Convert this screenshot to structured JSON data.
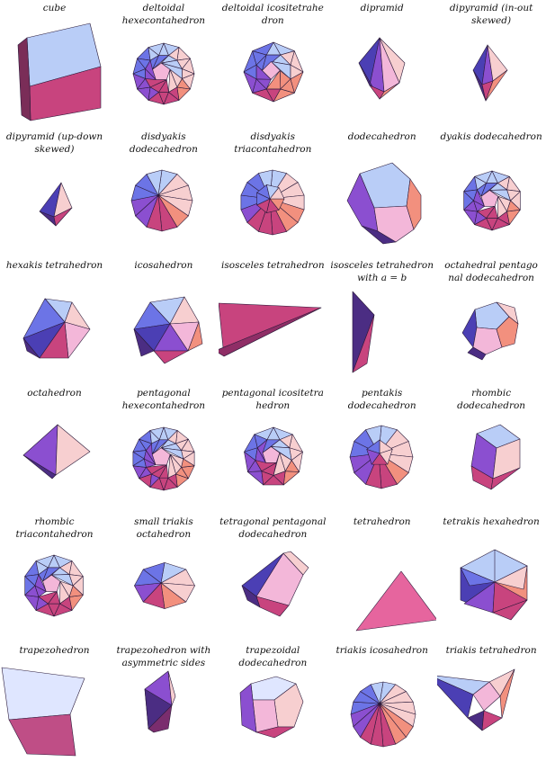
{
  "palette": {
    "light": "#dfe6ff",
    "sky": "#b9cdf7",
    "blue": "#6c74e6",
    "indigo": "#4b3fb4",
    "violet": "#8b4fd0",
    "pink": "#f3b7d9",
    "rose": "#c8447e",
    "salmon": "#f2907e",
    "peach": "#f7cfd0",
    "dark": "#4b2d83"
  },
  "cells": [
    {
      "label": "cube",
      "icon": "cube"
    },
    {
      "label": "deltoidal\nhexecontahedron",
      "icon": "deltoidal-hexecontahedron"
    },
    {
      "label": "deltoidal icositetrahe\ndron",
      "icon": "deltoidal-icositetrahedron"
    },
    {
      "label": "dipramid",
      "icon": "dipyramid"
    },
    {
      "label": "dipyramid (in-out\nskewed)",
      "icon": "dipyramid-in-out-skewed"
    },
    {
      "label": "dipyramid (up-down\nskewed)",
      "icon": "dipyramid-up-down-skewed"
    },
    {
      "label": "disdyakis\ndodecahedron",
      "icon": "disdyakis-dodecahedron"
    },
    {
      "label": "disdyakis\ntriacontahedron",
      "icon": "disdyakis-triacontahedron"
    },
    {
      "label": "dodecahedron",
      "icon": "dodecahedron"
    },
    {
      "label": "dyakis dodecahedron",
      "icon": "dyakis-dodecahedron"
    },
    {
      "label": "hexakis tetrahedron",
      "icon": "hexakis-tetrahedron"
    },
    {
      "label": "icosahedron",
      "icon": "icosahedron"
    },
    {
      "label": "isosceles tetrahedron",
      "icon": "isosceles-tetrahedron"
    },
    {
      "label": "isosceles tetrahedron\nwith a = b",
      "icon": "isosceles-tetrahedron-a-b"
    },
    {
      "label": "octahedral pentago\nnal dodecahedron",
      "icon": "octahedral-pentagonal-dodecahedron"
    },
    {
      "label": "octahedron",
      "icon": "octahedron"
    },
    {
      "label": "pentagonal\nhexecontahedron",
      "icon": "pentagonal-hexecontahedron"
    },
    {
      "label": "pentagonal icositetra\nhedron",
      "icon": "pentagonal-icositetrahedron"
    },
    {
      "label": "pentakis\ndodecahedron",
      "icon": "pentakis-dodecahedron"
    },
    {
      "label": "rhombic\ndodecahedron",
      "icon": "rhombic-dodecahedron"
    },
    {
      "label": "rhombic\ntriacontahedron",
      "icon": "rhombic-triacontahedron"
    },
    {
      "label": "small triakis\noctahedron",
      "icon": "small-triakis-octahedron"
    },
    {
      "label": "tetragonal pentagonal\ndodecahedron",
      "icon": "tetragonal-pentagonal-dodecahedron"
    },
    {
      "label": "tetrahedron",
      "icon": "tetrahedron"
    },
    {
      "label": "tetrakis hexahedron",
      "icon": "tetrakis-hexahedron"
    },
    {
      "label": "trapezohedron",
      "icon": "trapezohedron"
    },
    {
      "label": "trapezohedron with\nasymmetric sides",
      "icon": "trapezohedron-asymmetric"
    },
    {
      "label": "trapezoidal\ndodecahedron",
      "icon": "trapezoidal-dodecahedron"
    },
    {
      "label": "triakis icosahedron",
      "icon": "triakis-icosahedron"
    },
    {
      "label": "triakis tetrahedron",
      "icon": "triakis-tetrahedron"
    }
  ]
}
